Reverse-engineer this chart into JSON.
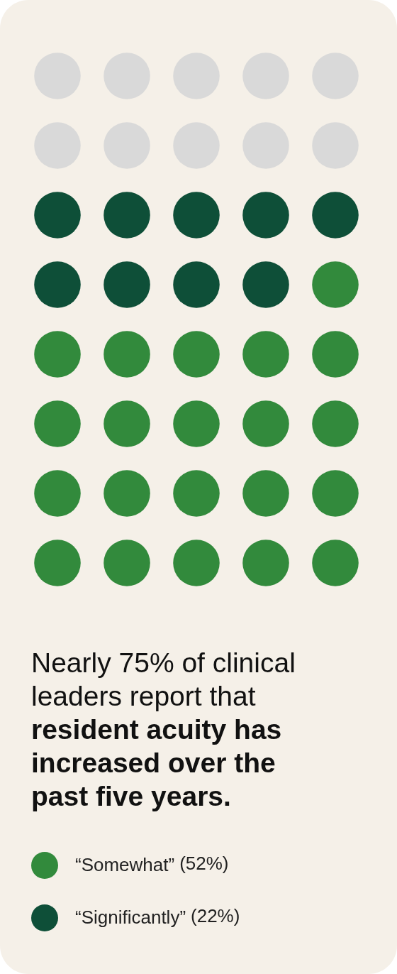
{
  "chart_data": {
    "type": "other",
    "title": "Nearly 75% of clinical leaders report that",
    "subtitle": "resident acuity has increased over the past five years.",
    "categories": [
      "“Somewhat”",
      "“Significantly”"
    ],
    "values": [
      52,
      22
    ],
    "value_labels": [
      "(52%)",
      "(22%)"
    ],
    "colors": [
      "#328a3c",
      "#0e4f38"
    ]
  }
}
